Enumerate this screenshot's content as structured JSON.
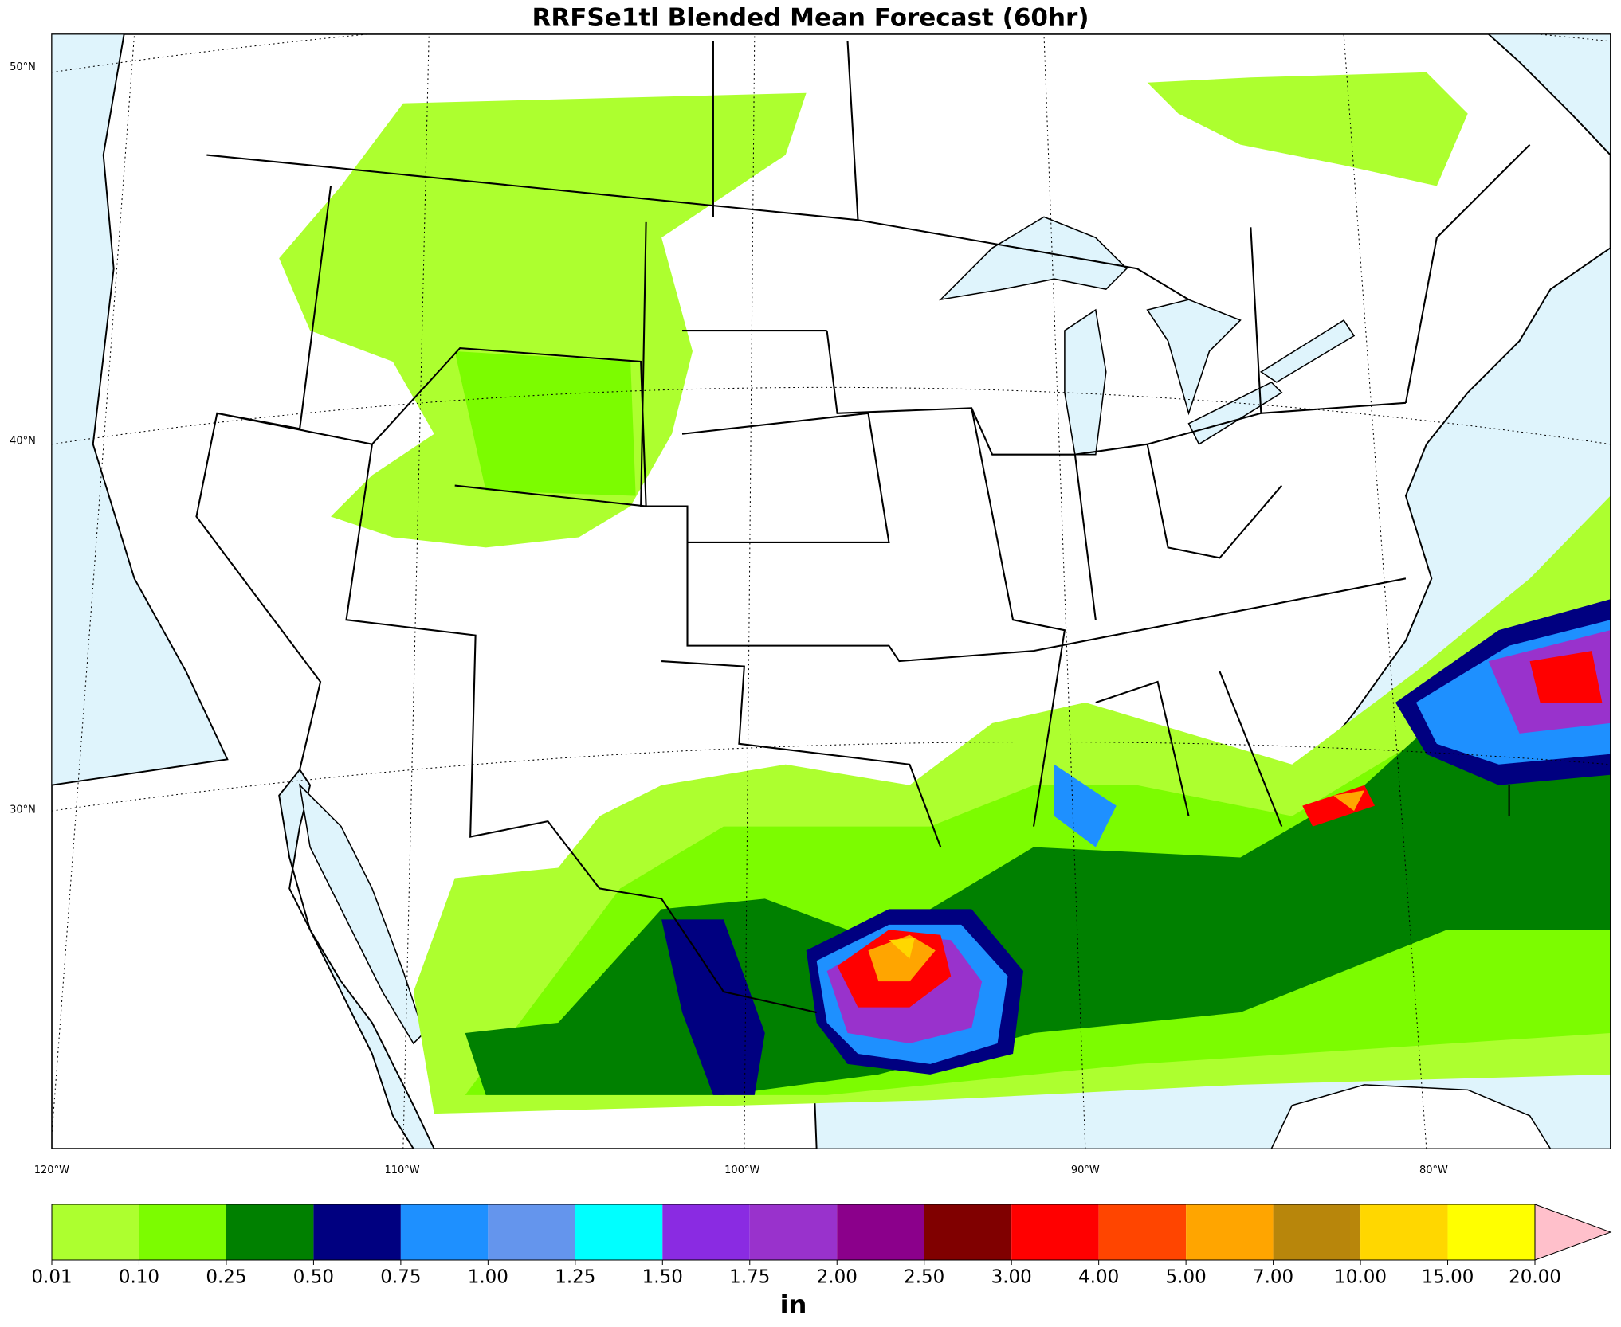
{
  "title": "RRFSe1tl Blended Mean Forecast (60hr)",
  "map": {
    "lat_labels": [
      "50°N",
      "40°N",
      "30°N"
    ],
    "lon_labels": [
      "120°W",
      "110°W",
      "100°W",
      "90°W",
      "80°W"
    ]
  },
  "colorbar": {
    "levels": [
      "0.01",
      "0.10",
      "0.25",
      "0.50",
      "0.75",
      "1.00",
      "1.25",
      "1.50",
      "1.75",
      "2.00",
      "2.50",
      "3.00",
      "4.00",
      "5.00",
      "7.00",
      "10.00",
      "15.00",
      "20.00"
    ],
    "colors": [
      "#adff2f",
      "#7cfc00",
      "#008000",
      "#000080",
      "#1e90ff",
      "#6495ed",
      "#00ffff",
      "#8a2be2",
      "#9932cc",
      "#8b008b",
      "#800000",
      "#ff0000",
      "#ff4500",
      "#ffa500",
      "#b8860b",
      "#ffd700",
      "#ffff00"
    ],
    "extend_color": "#ffc0cb",
    "label": "in"
  }
}
